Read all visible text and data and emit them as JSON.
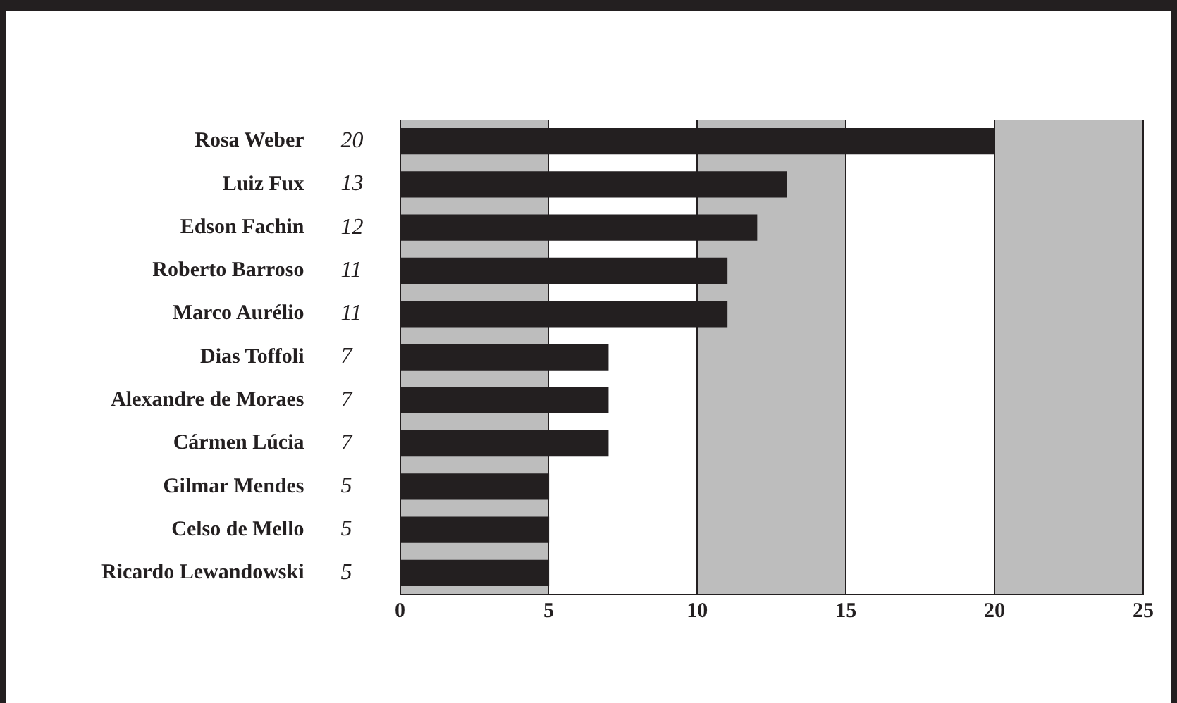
{
  "chart_data": {
    "type": "bar",
    "orientation": "horizontal",
    "categories": [
      "Rosa Weber",
      "Luiz Fux",
      "Edson Fachin",
      "Roberto Barroso",
      "Marco Aurélio",
      "Dias Toffoli",
      "Alexandre de Moraes",
      "Cármen Lúcia",
      "Gilmar Mendes",
      "Celso de Mello",
      "Ricardo Lewandowski"
    ],
    "values": [
      20,
      13,
      12,
      11,
      11,
      7,
      7,
      7,
      5,
      5,
      5
    ],
    "color": "#231f20",
    "xlim": [
      0,
      25
    ],
    "xticks": [
      0,
      5,
      10,
      15,
      20,
      25
    ],
    "grid": "x",
    "data_labels": true,
    "legend": false,
    "bands": [
      {
        "axis": "x",
        "from": 0,
        "to": 5,
        "color": "#bdbdbd"
      },
      {
        "axis": "x",
        "from": 10,
        "to": 15,
        "color": "#bdbdbd"
      },
      {
        "axis": "x",
        "from": 20,
        "to": 25,
        "color": "#bdbdbd"
      }
    ]
  }
}
